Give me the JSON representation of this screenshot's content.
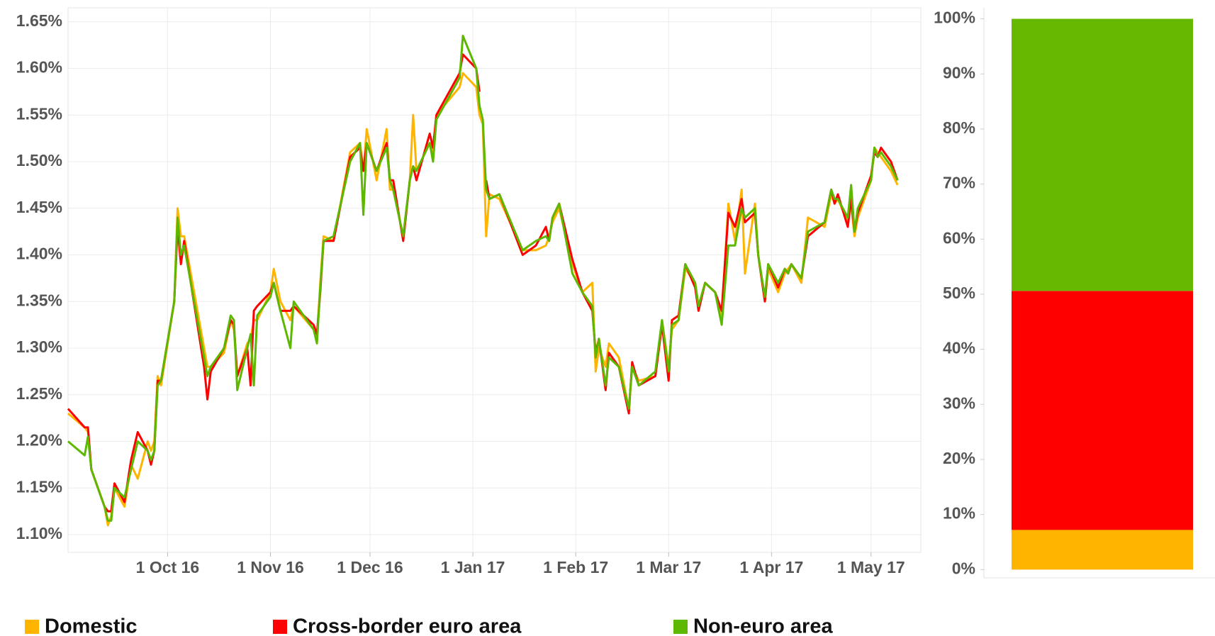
{
  "chart_data": [
    {
      "type": "line",
      "x": [
        "2016-09-01",
        "2016-09-06",
        "2016-09-07",
        "2016-09-08",
        "2016-09-12",
        "2016-09-13",
        "2016-09-14",
        "2016-09-15",
        "2016-09-18",
        "2016-09-20",
        "2016-09-22",
        "2016-09-25",
        "2016-09-26",
        "2016-09-27",
        "2016-09-28",
        "2016-09-29",
        "2016-10-03",
        "2016-10-04",
        "2016-10-05",
        "2016-10-06",
        "2016-10-12",
        "2016-10-13",
        "2016-10-14",
        "2016-10-18",
        "2016-10-20",
        "2016-10-21",
        "2016-10-22",
        "2016-10-25",
        "2016-10-26",
        "2016-10-27",
        "2016-10-28",
        "2016-11-01",
        "2016-11-02",
        "2016-11-04",
        "2016-11-07",
        "2016-11-08",
        "2016-11-14",
        "2016-11-15",
        "2016-11-16",
        "2016-11-17",
        "2016-11-20",
        "2016-11-25",
        "2016-11-28",
        "2016-11-29",
        "2016-11-30",
        "2016-12-03",
        "2016-12-06",
        "2016-12-07",
        "2016-12-08",
        "2016-12-11",
        "2016-12-13",
        "2016-12-14",
        "2016-12-15",
        "2016-12-19",
        "2016-12-20",
        "2016-12-21",
        "2016-12-28",
        "2016-12-29",
        "2017-01-02",
        "2017-01-03",
        "2017-01-04",
        "2017-01-05",
        "2017-01-06",
        "2017-01-09",
        "2017-01-16",
        "2017-01-20",
        "2017-01-23",
        "2017-01-24",
        "2017-01-25",
        "2017-01-27",
        "2017-01-31",
        "2017-02-03",
        "2017-02-06",
        "2017-02-07",
        "2017-02-08",
        "2017-02-10",
        "2017-02-11",
        "2017-02-14",
        "2017-02-17",
        "2017-02-18",
        "2017-02-20",
        "2017-02-25",
        "2017-02-27",
        "2017-03-01",
        "2017-03-02",
        "2017-03-04",
        "2017-03-06",
        "2017-03-09",
        "2017-03-10",
        "2017-03-12",
        "2017-03-15",
        "2017-03-17",
        "2017-03-19",
        "2017-03-21",
        "2017-03-23",
        "2017-03-24",
        "2017-03-27",
        "2017-03-28",
        "2017-03-30",
        "2017-03-31",
        "2017-04-03",
        "2017-04-05",
        "2017-04-06",
        "2017-04-07",
        "2017-04-10",
        "2017-04-12",
        "2017-04-17",
        "2017-04-19",
        "2017-04-20",
        "2017-04-21",
        "2017-04-24",
        "2017-04-25",
        "2017-04-26",
        "2017-04-27",
        "2017-05-01",
        "2017-05-02",
        "2017-05-03",
        "2017-05-04",
        "2017-05-07",
        "2017-05-09"
      ],
      "series": [
        {
          "name": "Domestic",
          "color": "#ffb400",
          "values": [
            1.23,
            1.215,
            1.21,
            1.17,
            1.13,
            1.11,
            1.12,
            1.15,
            1.13,
            1.175,
            1.16,
            1.2,
            1.19,
            1.2,
            1.27,
            1.26,
            1.35,
            1.45,
            1.42,
            1.42,
            1.3,
            1.28,
            1.28,
            1.295,
            1.33,
            1.32,
            1.27,
            1.305,
            1.31,
            1.33,
            1.33,
            1.36,
            1.385,
            1.35,
            1.33,
            1.345,
            1.32,
            1.31,
            1.37,
            1.42,
            1.415,
            1.51,
            1.52,
            1.49,
            1.535,
            1.48,
            1.535,
            1.47,
            1.47,
            1.42,
            1.48,
            1.55,
            1.49,
            1.52,
            1.51,
            1.55,
            1.58,
            1.595,
            1.58,
            1.55,
            1.54,
            1.42,
            1.465,
            1.46,
            1.405,
            1.405,
            1.41,
            1.42,
            1.435,
            1.45,
            1.39,
            1.36,
            1.37,
            1.275,
            1.3,
            1.28,
            1.305,
            1.29,
            1.235,
            1.28,
            1.265,
            1.27,
            1.33,
            1.28,
            1.32,
            1.33,
            1.385,
            1.37,
            1.345,
            1.37,
            1.36,
            1.335,
            1.455,
            1.415,
            1.47,
            1.38,
            1.455,
            1.4,
            1.35,
            1.385,
            1.36,
            1.38,
            1.385,
            1.39,
            1.37,
            1.44,
            1.43,
            1.465,
            1.455,
            1.46,
            1.435,
            1.455,
            1.42,
            1.44,
            1.48,
            1.515,
            1.51,
            1.505,
            1.49,
            1.475
          ]
        },
        {
          "name": "Cross-border euro area",
          "color": "#ff0000",
          "values": [
            1.235,
            1.215,
            1.215,
            1.17,
            1.13,
            1.125,
            1.125,
            1.155,
            1.135,
            1.18,
            1.21,
            1.19,
            1.175,
            1.19,
            1.265,
            1.265,
            1.35,
            1.43,
            1.39,
            1.415,
            1.28,
            1.245,
            1.275,
            1.3,
            1.33,
            1.325,
            1.27,
            1.3,
            1.26,
            1.34,
            1.345,
            1.36,
            1.37,
            1.34,
            1.34,
            1.345,
            1.325,
            1.315,
            1.36,
            1.415,
            1.415,
            1.505,
            1.515,
            1.49,
            1.52,
            1.49,
            1.52,
            1.48,
            1.48,
            1.415,
            1.48,
            1.495,
            1.48,
            1.53,
            1.515,
            1.55,
            1.595,
            1.615,
            1.6,
            1.575,
            null,
            1.48,
            1.46,
            1.465,
            1.4,
            1.41,
            1.43,
            1.415,
            1.44,
            1.455,
            1.395,
            1.36,
            1.34,
            1.295,
            1.31,
            1.255,
            1.295,
            1.28,
            1.23,
            1.285,
            1.26,
            1.27,
            1.325,
            1.265,
            1.33,
            1.335,
            1.39,
            1.365,
            1.34,
            1.37,
            1.36,
            1.34,
            1.445,
            1.43,
            1.46,
            1.435,
            1.445,
            1.4,
            1.35,
            1.39,
            1.365,
            1.385,
            1.38,
            1.39,
            1.375,
            1.42,
            1.435,
            1.47,
            1.455,
            1.465,
            1.43,
            1.46,
            1.425,
            1.445,
            1.485,
            1.51,
            1.505,
            1.515,
            1.5,
            1.48
          ]
        },
        {
          "name": "Non-euro area",
          "color": "#5cb800",
          "values": [
            1.2,
            1.185,
            1.205,
            1.17,
            1.13,
            1.115,
            1.115,
            1.15,
            1.14,
            1.17,
            1.2,
            1.19,
            1.18,
            1.19,
            1.26,
            1.265,
            1.35,
            1.44,
            1.4,
            1.41,
            1.29,
            1.27,
            1.28,
            1.3,
            1.335,
            1.33,
            1.255,
            1.3,
            1.315,
            1.26,
            1.335,
            1.355,
            1.37,
            1.34,
            1.3,
            1.35,
            1.32,
            1.305,
            1.365,
            1.415,
            1.42,
            1.5,
            1.52,
            1.443,
            1.52,
            1.49,
            1.515,
            1.48,
            1.47,
            1.42,
            1.48,
            1.495,
            1.49,
            1.52,
            1.5,
            1.545,
            1.59,
            1.635,
            1.6,
            1.56,
            1.545,
            1.47,
            1.46,
            1.465,
            1.405,
            1.415,
            1.42,
            1.415,
            1.44,
            1.455,
            1.38,
            1.36,
            1.345,
            1.29,
            1.31,
            1.26,
            1.29,
            1.28,
            1.235,
            1.28,
            1.26,
            1.275,
            1.33,
            1.275,
            1.325,
            1.33,
            1.39,
            1.37,
            1.345,
            1.37,
            1.36,
            1.325,
            1.41,
            1.41,
            1.45,
            1.44,
            1.45,
            1.4,
            1.355,
            1.39,
            1.37,
            1.385,
            1.38,
            1.39,
            1.375,
            1.425,
            1.435,
            1.47,
            1.46,
            1.46,
            1.44,
            1.475,
            1.425,
            1.45,
            1.48,
            1.515,
            1.505,
            1.51,
            1.495,
            1.48
          ]
        }
      ],
      "xlim": [
        "2016-09-01",
        "2017-05-16"
      ],
      "xticks": [
        {
          "value": "2016-10-01",
          "label": "1 Oct 16"
        },
        {
          "value": "2016-11-01",
          "label": "1 Nov 16"
        },
        {
          "value": "2016-12-01",
          "label": "1 Dec 16"
        },
        {
          "value": "2017-01-01",
          "label": "1 Jan 17"
        },
        {
          "value": "2017-02-01",
          "label": "1 Feb 17"
        },
        {
          "value": "2017-03-01",
          "label": "1 Mar 17"
        },
        {
          "value": "2017-04-01",
          "label": "1 Apr 17"
        },
        {
          "value": "2017-05-01",
          "label": "1 May 17"
        }
      ],
      "ylim": [
        1.081,
        1.665
      ],
      "yticks": [
        {
          "value": 1.1,
          "label": "1.10%"
        },
        {
          "value": 1.15,
          "label": "1.15%"
        },
        {
          "value": 1.2,
          "label": "1.20%"
        },
        {
          "value": 1.25,
          "label": "1.25%"
        },
        {
          "value": 1.3,
          "label": "1.30%"
        },
        {
          "value": 1.35,
          "label": "1.35%"
        },
        {
          "value": 1.4,
          "label": "1.40%"
        },
        {
          "value": 1.45,
          "label": "1.45%"
        },
        {
          "value": 1.5,
          "label": "1.50%"
        },
        {
          "value": 1.55,
          "label": "1.55%"
        },
        {
          "value": 1.6,
          "label": "1.60%"
        },
        {
          "value": 1.65,
          "label": "1.65%"
        }
      ],
      "grid": true,
      "legend": "bottom"
    },
    {
      "type": "stacked_bar",
      "categories": [
        null
      ],
      "series": [
        {
          "color": "#ffb400",
          "values": [
            7.2
          ]
        },
        {
          "color": "#ff0000",
          "values": [
            43.4
          ]
        },
        {
          "color": "#66b800",
          "values": [
            49.4
          ]
        }
      ],
      "ylim": [
        -1.5,
        102
      ],
      "yticks": [
        {
          "value": 0,
          "label": "0%"
        },
        {
          "value": 10,
          "label": "10%"
        },
        {
          "value": 20,
          "label": "20%"
        },
        {
          "value": 30,
          "label": "30%"
        },
        {
          "value": 40,
          "label": "40%"
        },
        {
          "value": 50,
          "label": "50%"
        },
        {
          "value": 60,
          "label": "60%"
        },
        {
          "value": 70,
          "label": "70%"
        },
        {
          "value": 80,
          "label": "80%"
        },
        {
          "value": 90,
          "label": "90%"
        },
        {
          "value": 100,
          "label": "100%"
        }
      ],
      "grid": false
    }
  ]
}
